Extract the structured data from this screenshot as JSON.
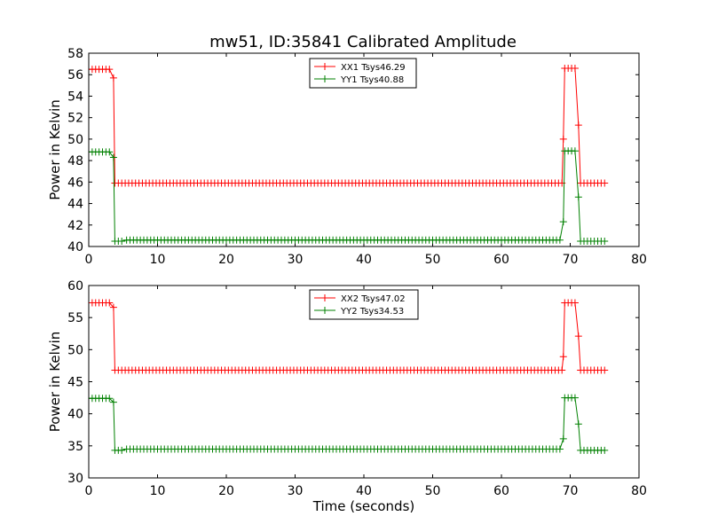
{
  "chart_data": [
    {
      "type": "line",
      "title": "mw51, ID:35841 Calibrated Amplitude",
      "xlabel": "",
      "ylabel": "Power in Kelvin",
      "xlim": [
        0,
        80
      ],
      "ylim": [
        40,
        58
      ],
      "xticks": [
        "0",
        "10",
        "20",
        "30",
        "40",
        "50",
        "60",
        "70",
        "80"
      ],
      "yticks": [
        "40",
        "42",
        "44",
        "46",
        "48",
        "50",
        "52",
        "54",
        "56",
        "58"
      ],
      "grid": false,
      "legend": "top-center",
      "marker": "+",
      "series": [
        {
          "name": "XX1 Tsys46.29",
          "color": "#ff0000",
          "segments": [
            {
              "x0": 0.0,
              "x1": 3.3,
              "y": 56.5
            },
            {
              "x0": 3.6,
              "x1": 3.6,
              "y": 55.7
            },
            {
              "x0": 3.8,
              "x1": 68.8,
              "y": 45.9
            },
            {
              "x0": 69.0,
              "x1": 69.0,
              "y": 50.0
            },
            {
              "x0": 69.2,
              "x1": 71.0,
              "y": 56.6
            },
            {
              "x0": 71.2,
              "x1": 71.2,
              "y": 51.3
            },
            {
              "x0": 71.5,
              "x1": 75.0,
              "y": 45.9
            }
          ]
        },
        {
          "name": "YY1 Tsys40.88",
          "color": "#008000",
          "segments": [
            {
              "x0": 0.0,
              "x1": 3.3,
              "y": 48.8
            },
            {
              "x0": 3.6,
              "x1": 3.6,
              "y": 48.3
            },
            {
              "x0": 3.8,
              "x1": 5.0,
              "y": 40.5
            },
            {
              "x0": 5.5,
              "x1": 68.8,
              "y": 40.6
            },
            {
              "x0": 69.0,
              "x1": 69.0,
              "y": 42.3
            },
            {
              "x0": 69.2,
              "x1": 71.0,
              "y": 48.9
            },
            {
              "x0": 71.2,
              "x1": 71.2,
              "y": 44.6
            },
            {
              "x0": 71.5,
              "x1": 75.0,
              "y": 40.5
            }
          ]
        }
      ]
    },
    {
      "type": "line",
      "title": "",
      "xlabel": "Time (seconds)",
      "ylabel": "Power in Kelvin",
      "xlim": [
        0,
        80
      ],
      "ylim": [
        30,
        60
      ],
      "xticks": [
        "0",
        "10",
        "20",
        "30",
        "40",
        "50",
        "60",
        "70",
        "80"
      ],
      "yticks": [
        "30",
        "35",
        "40",
        "45",
        "50",
        "55",
        "60"
      ],
      "grid": false,
      "legend": "top-center",
      "marker": "+",
      "series": [
        {
          "name": "XX2 Tsys47.02",
          "color": "#ff0000",
          "segments": [
            {
              "x0": 0.0,
              "x1": 3.3,
              "y": 57.3
            },
            {
              "x0": 3.6,
              "x1": 3.6,
              "y": 56.6
            },
            {
              "x0": 3.8,
              "x1": 68.8,
              "y": 46.8
            },
            {
              "x0": 69.0,
              "x1": 69.0,
              "y": 48.9
            },
            {
              "x0": 69.2,
              "x1": 71.0,
              "y": 57.3
            },
            {
              "x0": 71.2,
              "x1": 71.2,
              "y": 52.1
            },
            {
              "x0": 71.5,
              "x1": 75.0,
              "y": 46.8
            }
          ]
        },
        {
          "name": "YY2 Tsys34.53",
          "color": "#008000",
          "segments": [
            {
              "x0": 0.0,
              "x1": 3.3,
              "y": 42.4
            },
            {
              "x0": 3.6,
              "x1": 3.6,
              "y": 41.8
            },
            {
              "x0": 3.8,
              "x1": 5.0,
              "y": 34.3
            },
            {
              "x0": 5.5,
              "x1": 68.8,
              "y": 34.5
            },
            {
              "x0": 69.0,
              "x1": 69.0,
              "y": 36.1
            },
            {
              "x0": 69.2,
              "x1": 71.0,
              "y": 42.5
            },
            {
              "x0": 71.2,
              "x1": 71.2,
              "y": 38.4
            },
            {
              "x0": 71.5,
              "x1": 75.0,
              "y": 34.3
            }
          ]
        }
      ]
    }
  ]
}
